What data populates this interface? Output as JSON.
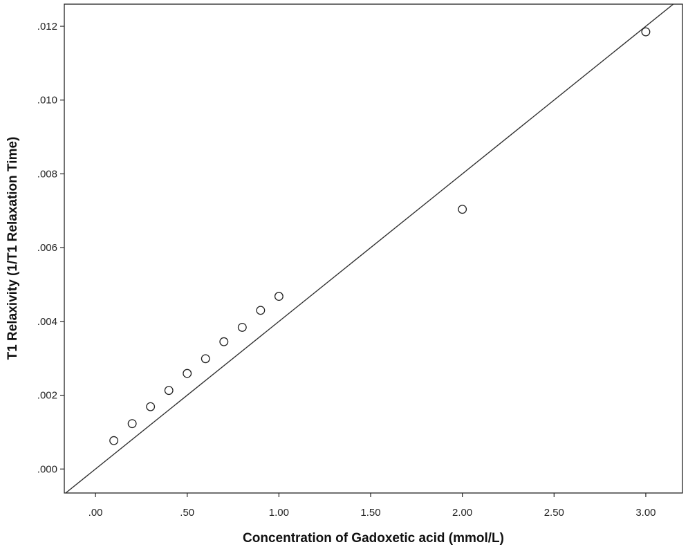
{
  "chart_data": {
    "type": "scatter",
    "title": "",
    "xlabel": "Concentration of Gadoxetic acid (mmol/L)",
    "ylabel": "T1 Relaxivity (1/T1 Relaxation Time)",
    "xlim": [
      -0.17,
      3.2
    ],
    "ylim": [
      -0.00065,
      0.0126
    ],
    "x_ticks": [
      {
        "value": 0.0,
        "label": ".00"
      },
      {
        "value": 0.5,
        "label": ".50"
      },
      {
        "value": 1.0,
        "label": "1.00"
      },
      {
        "value": 1.5,
        "label": "1.50"
      },
      {
        "value": 2.0,
        "label": "2.00"
      },
      {
        "value": 2.5,
        "label": "2.50"
      },
      {
        "value": 3.0,
        "label": "3.00"
      }
    ],
    "y_ticks": [
      {
        "value": 0.0,
        "label": ".000"
      },
      {
        "value": 0.002,
        "label": ".002"
      },
      {
        "value": 0.004,
        "label": ".004"
      },
      {
        "value": 0.006,
        "label": ".006"
      },
      {
        "value": 0.008,
        "label": ".008"
      },
      {
        "value": 0.01,
        "label": ".010"
      },
      {
        "value": 0.012,
        "label": ".012"
      }
    ],
    "points": [
      {
        "x": 0.1,
        "y": 0.00077
      },
      {
        "x": 0.2,
        "y": 0.00123
      },
      {
        "x": 0.3,
        "y": 0.00169
      },
      {
        "x": 0.4,
        "y": 0.00213
      },
      {
        "x": 0.5,
        "y": 0.00259
      },
      {
        "x": 0.6,
        "y": 0.00299
      },
      {
        "x": 0.7,
        "y": 0.00345
      },
      {
        "x": 0.8,
        "y": 0.00384
      },
      {
        "x": 0.9,
        "y": 0.0043
      },
      {
        "x": 1.0,
        "y": 0.00468
      },
      {
        "x": 2.0,
        "y": 0.00704
      },
      {
        "x": 3.0,
        "y": 0.01185
      }
    ],
    "reference_line": {
      "slope": 0.004,
      "intercept": 0.0
    },
    "grid": false,
    "marker": "open-circle"
  }
}
